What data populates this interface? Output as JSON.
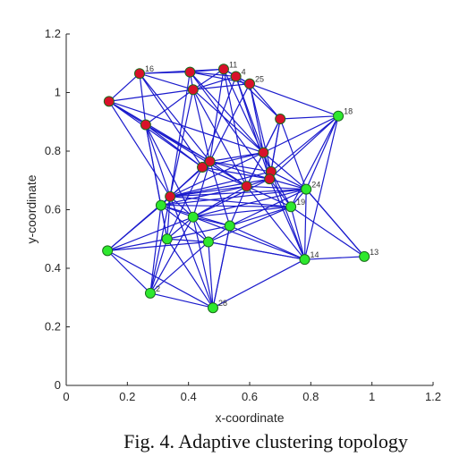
{
  "caption": "Fig. 4. Adaptive clustering topology",
  "chart_data": {
    "type": "scatter",
    "xlabel": "x-coordinate",
    "ylabel": "y-coordinate",
    "xlim": [
      0,
      1.2
    ],
    "ylim": [
      0,
      1.2
    ],
    "xticks": [
      0,
      0.2,
      0.4,
      0.6,
      0.8,
      1,
      1.2
    ],
    "yticks": [
      0,
      0.2,
      0.4,
      0.6,
      0.8,
      1,
      1.2
    ],
    "xtick_labels": [
      "0",
      "0.2",
      "0.4",
      "0.6",
      "0.8",
      "1",
      "1.2"
    ],
    "ytick_labels": [
      "0",
      "0.2",
      "0.4",
      "0.6",
      "0.8",
      "1",
      "1.2"
    ],
    "grid": false,
    "colors": {
      "edge": "#1a1acc",
      "cluster_a": "#d8112a",
      "cluster_b": "#2ee82e",
      "node_stroke": "#1a6b1a"
    },
    "nodes": [
      {
        "id": "n16",
        "label": "16",
        "x": 0.24,
        "y": 1.065,
        "cluster": "a"
      },
      {
        "id": "n20",
        "label": "",
        "x": 0.405,
        "y": 1.07,
        "cluster": "a"
      },
      {
        "id": "n11",
        "label": "11",
        "x": 0.515,
        "y": 1.08,
        "cluster": "a"
      },
      {
        "id": "n4",
        "label": "4",
        "x": 0.555,
        "y": 1.055,
        "cluster": "a"
      },
      {
        "id": "n25",
        "label": "25",
        "x": 0.6,
        "y": 1.03,
        "cluster": "a"
      },
      {
        "id": "n5",
        "label": "",
        "x": 0.415,
        "y": 1.01,
        "cluster": "a"
      },
      {
        "id": "n6",
        "label": "",
        "x": 0.14,
        "y": 0.97,
        "cluster": "a"
      },
      {
        "id": "n7",
        "label": "",
        "x": 0.7,
        "y": 0.91,
        "cluster": "a"
      },
      {
        "id": "n8",
        "label": "",
        "x": 0.26,
        "y": 0.89,
        "cluster": "a"
      },
      {
        "id": "n9",
        "label": "",
        "x": 0.645,
        "y": 0.795,
        "cluster": "a"
      },
      {
        "id": "n10",
        "label": "",
        "x": 0.47,
        "y": 0.765,
        "cluster": "a"
      },
      {
        "id": "n12",
        "label": "",
        "x": 0.445,
        "y": 0.745,
        "cluster": "a"
      },
      {
        "id": "n13",
        "label": "",
        "x": 0.67,
        "y": 0.73,
        "cluster": "a"
      },
      {
        "id": "n14",
        "label": "",
        "x": 0.665,
        "y": 0.705,
        "cluster": "a"
      },
      {
        "id": "n15",
        "label": "",
        "x": 0.59,
        "y": 0.68,
        "cluster": "a"
      },
      {
        "id": "n17",
        "label": "",
        "x": 0.34,
        "y": 0.645,
        "cluster": "a"
      },
      {
        "id": "n18",
        "label": "18",
        "x": 0.89,
        "y": 0.92,
        "cluster": "b"
      },
      {
        "id": "n24",
        "label": "24",
        "x": 0.785,
        "y": 0.67,
        "cluster": "b"
      },
      {
        "id": "n19",
        "label": "19",
        "x": 0.735,
        "y": 0.61,
        "cluster": "b"
      },
      {
        "id": "n21",
        "label": "",
        "x": 0.31,
        "y": 0.615,
        "cluster": "b"
      },
      {
        "id": "n22",
        "label": "",
        "x": 0.415,
        "y": 0.575,
        "cluster": "b"
      },
      {
        "id": "n23",
        "label": "",
        "x": 0.535,
        "y": 0.545,
        "cluster": "b"
      },
      {
        "id": "n26",
        "label": "",
        "x": 0.33,
        "y": 0.5,
        "cluster": "b"
      },
      {
        "id": "n27",
        "label": "",
        "x": 0.465,
        "y": 0.49,
        "cluster": "b"
      },
      {
        "id": "n28",
        "label": "",
        "x": 0.135,
        "y": 0.46,
        "cluster": "b"
      },
      {
        "id": "n29",
        "label": "14",
        "x": 0.78,
        "y": 0.43,
        "cluster": "b"
      },
      {
        "id": "n30",
        "label": "13",
        "x": 0.975,
        "y": 0.44,
        "cluster": "b"
      },
      {
        "id": "n31",
        "label": "2",
        "x": 0.275,
        "y": 0.315,
        "cluster": "b"
      },
      {
        "id": "n32",
        "label": "28",
        "x": 0.48,
        "y": 0.265,
        "cluster": "b"
      }
    ],
    "edges": [
      [
        "n16",
        "n20"
      ],
      [
        "n16",
        "n5"
      ],
      [
        "n16",
        "n11"
      ],
      [
        "n16",
        "n6"
      ],
      [
        "n16",
        "n8"
      ],
      [
        "n16",
        "n10"
      ],
      [
        "n16",
        "n12"
      ],
      [
        "n20",
        "n11"
      ],
      [
        "n20",
        "n4"
      ],
      [
        "n20",
        "n5"
      ],
      [
        "n20",
        "n25"
      ],
      [
        "n20",
        "n9"
      ],
      [
        "n20",
        "n14"
      ],
      [
        "n20",
        "n17"
      ],
      [
        "n11",
        "n4"
      ],
      [
        "n11",
        "n25"
      ],
      [
        "n11",
        "n5"
      ],
      [
        "n11",
        "n10"
      ],
      [
        "n11",
        "n15"
      ],
      [
        "n11",
        "n13"
      ],
      [
        "n4",
        "n25"
      ],
      [
        "n4",
        "n5"
      ],
      [
        "n4",
        "n7"
      ],
      [
        "n4",
        "n12"
      ],
      [
        "n4",
        "n14"
      ],
      [
        "n4",
        "n9"
      ],
      [
        "n25",
        "n7"
      ],
      [
        "n25",
        "n18"
      ],
      [
        "n25",
        "n9"
      ],
      [
        "n25",
        "n13"
      ],
      [
        "n25",
        "n10"
      ],
      [
        "n25",
        "n5"
      ],
      [
        "n5",
        "n8"
      ],
      [
        "n5",
        "n10"
      ],
      [
        "n5",
        "n15"
      ],
      [
        "n5",
        "n9"
      ],
      [
        "n5",
        "n17"
      ],
      [
        "n5",
        "n6"
      ],
      [
        "n6",
        "n8"
      ],
      [
        "n6",
        "n10"
      ],
      [
        "n6",
        "n12"
      ],
      [
        "n6",
        "n17"
      ],
      [
        "n6",
        "n9"
      ],
      [
        "n8",
        "n10"
      ],
      [
        "n8",
        "n12"
      ],
      [
        "n8",
        "n17"
      ],
      [
        "n8",
        "n15"
      ],
      [
        "n8",
        "n21"
      ],
      [
        "n8",
        "n26"
      ],
      [
        "n8",
        "n22"
      ],
      [
        "n7",
        "n9"
      ],
      [
        "n7",
        "n13"
      ],
      [
        "n7",
        "n18"
      ],
      [
        "n7",
        "n15"
      ],
      [
        "n7",
        "n24"
      ],
      [
        "n7",
        "n14"
      ],
      [
        "n9",
        "n10"
      ],
      [
        "n9",
        "n12"
      ],
      [
        "n9",
        "n13"
      ],
      [
        "n9",
        "n14"
      ],
      [
        "n9",
        "n15"
      ],
      [
        "n9",
        "n24"
      ],
      [
        "n9",
        "n17"
      ],
      [
        "n10",
        "n12"
      ],
      [
        "n10",
        "n13"
      ],
      [
        "n10",
        "n14"
      ],
      [
        "n10",
        "n15"
      ],
      [
        "n10",
        "n17"
      ],
      [
        "n10",
        "n22"
      ],
      [
        "n10",
        "n23"
      ],
      [
        "n12",
        "n17"
      ],
      [
        "n12",
        "n14"
      ],
      [
        "n12",
        "n15"
      ],
      [
        "n12",
        "n21"
      ],
      [
        "n12",
        "n26"
      ],
      [
        "n13",
        "n14"
      ],
      [
        "n13",
        "n18"
      ],
      [
        "n13",
        "n24"
      ],
      [
        "n13",
        "n19"
      ],
      [
        "n13",
        "n17"
      ],
      [
        "n14",
        "n15"
      ],
      [
        "n14",
        "n24"
      ],
      [
        "n14",
        "n19"
      ],
      [
        "n14",
        "n17"
      ],
      [
        "n14",
        "n22"
      ],
      [
        "n14",
        "n29"
      ],
      [
        "n15",
        "n17"
      ],
      [
        "n15",
        "n24"
      ],
      [
        "n15",
        "n19"
      ],
      [
        "n15",
        "n22"
      ],
      [
        "n15",
        "n23"
      ],
      [
        "n15",
        "n21"
      ],
      [
        "n17",
        "n21"
      ],
      [
        "n17",
        "n22"
      ],
      [
        "n17",
        "n24"
      ],
      [
        "n17",
        "n19"
      ],
      [
        "n17",
        "n26"
      ],
      [
        "n18",
        "n24"
      ],
      [
        "n18",
        "n19"
      ],
      [
        "n18",
        "n29"
      ],
      [
        "n18",
        "n9"
      ],
      [
        "n18",
        "n14"
      ],
      [
        "n24",
        "n19"
      ],
      [
        "n24",
        "n29"
      ],
      [
        "n24",
        "n30"
      ],
      [
        "n24",
        "n21"
      ],
      [
        "n24",
        "n22"
      ],
      [
        "n24",
        "n23"
      ],
      [
        "n19",
        "n29"
      ],
      [
        "n19",
        "n23"
      ],
      [
        "n19",
        "n22"
      ],
      [
        "n19",
        "n21"
      ],
      [
        "n19",
        "n27"
      ],
      [
        "n21",
        "n22"
      ],
      [
        "n21",
        "n26"
      ],
      [
        "n21",
        "n28"
      ],
      [
        "n21",
        "n31"
      ],
      [
        "n21",
        "n23"
      ],
      [
        "n21",
        "n27"
      ],
      [
        "n22",
        "n23"
      ],
      [
        "n22",
        "n26"
      ],
      [
        "n22",
        "n27"
      ],
      [
        "n22",
        "n28"
      ],
      [
        "n22",
        "n29"
      ],
      [
        "n22",
        "n32"
      ],
      [
        "n23",
        "n27"
      ],
      [
        "n23",
        "n26"
      ],
      [
        "n23",
        "n29"
      ],
      [
        "n23",
        "n32"
      ],
      [
        "n26",
        "n27"
      ],
      [
        "n26",
        "n28"
      ],
      [
        "n26",
        "n31"
      ],
      [
        "n26",
        "n32"
      ],
      [
        "n27",
        "n28"
      ],
      [
        "n27",
        "n29"
      ],
      [
        "n27",
        "n32"
      ],
      [
        "n27",
        "n31"
      ],
      [
        "n28",
        "n31"
      ],
      [
        "n28",
        "n32"
      ],
      [
        "n28",
        "n17"
      ],
      [
        "n29",
        "n30"
      ],
      [
        "n29",
        "n32"
      ],
      [
        "n29",
        "n27"
      ],
      [
        "n29",
        "n13"
      ],
      [
        "n29",
        "n15"
      ],
      [
        "n30",
        "n19"
      ],
      [
        "n30",
        "n24"
      ],
      [
        "n31",
        "n32"
      ],
      [
        "n31",
        "n17"
      ],
      [
        "n31",
        "n22"
      ],
      [
        "n32",
        "n23"
      ],
      [
        "n32",
        "n17"
      ]
    ]
  }
}
